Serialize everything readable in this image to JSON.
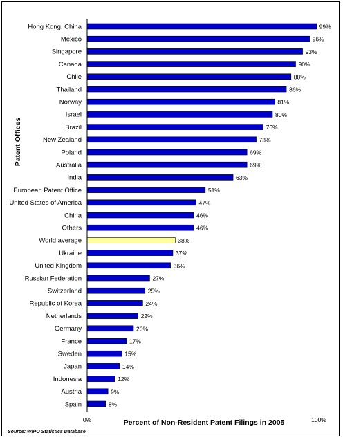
{
  "chart_data": {
    "type": "bar",
    "orientation": "horizontal",
    "title": "",
    "xlabel": "Percent of Non-Resident Patent Filings in 2005",
    "ylabel": "Patent Offices",
    "xlim": [
      0,
      100
    ],
    "x_ticks": [
      "0%",
      "100%"
    ],
    "grid": false,
    "legend": "none",
    "colors": {
      "bar": "#0000cc",
      "highlight": "#ffff99",
      "outline": "#000000"
    },
    "highlight_category": "World average",
    "source": "Source: WIPO Statistics Database",
    "categories": [
      "Hong Kong, China",
      "Mexico",
      "Singapore",
      "Canada",
      "Chile",
      "Thailand",
      "Norway",
      "Israel",
      "Brazil",
      "New Zealand",
      "Poland",
      "Australia",
      "India",
      "European Patent Office",
      "United States of America",
      "China",
      "Others",
      "World average",
      "Ukraine",
      "United Kingdom",
      "Russian Federation",
      "Switzerland",
      "Republic of Korea",
      "Netherlands",
      "Germany",
      "France",
      "Sweden",
      "Japan",
      "Indonesia",
      "Austria",
      "Spain"
    ],
    "values": [
      99,
      96,
      93,
      90,
      88,
      86,
      81,
      80,
      76,
      73,
      69,
      69,
      63,
      51,
      47,
      46,
      46,
      38,
      37,
      36,
      27,
      25,
      24,
      22,
      20,
      17,
      15,
      14,
      12,
      9,
      8
    ],
    "value_labels": [
      "99%",
      "96%",
      "93%",
      "90%",
      "88%",
      "86%",
      "81%",
      "80%",
      "76%",
      "73%",
      "69%",
      "69%",
      "63%",
      "51%",
      "47%",
      "46%",
      "46%",
      "38%",
      "37%",
      "36%",
      "27%",
      "25%",
      "24%",
      "22%",
      "20%",
      "17%",
      "15%",
      "14%",
      "12%",
      "9%",
      "8%"
    ]
  }
}
